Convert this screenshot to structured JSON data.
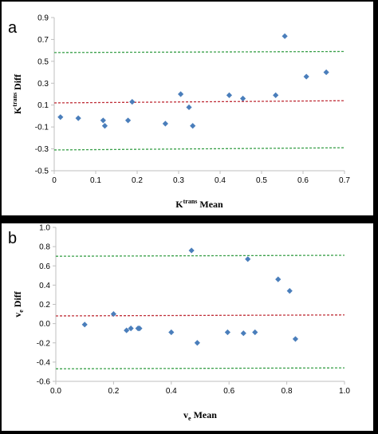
{
  "colors": {
    "points": "#4a7ebb",
    "mean_line": "#c0303a",
    "limit_lines": "#3aa04a",
    "axis": "#bfbfbf",
    "background": "#000000"
  },
  "chart_data": [
    {
      "type": "scatter",
      "panel_label": "a",
      "xlabel_main": "K",
      "xlabel_sup": "trans",
      "xlabel_tail": " Mean",
      "ylabel_main": "K",
      "ylabel_sup": "trans",
      "ylabel_tail": " Diff",
      "xlim": [
        0,
        0.7
      ],
      "ylim": [
        -0.5,
        0.9
      ],
      "x_ticks": [
        "0",
        "0.1",
        "0.2",
        "0.3",
        "0.4",
        "0.5",
        "0.6",
        "0.7"
      ],
      "y_ticks": [
        "0.9",
        "0.7",
        "0.5",
        "0.3",
        "0.1",
        "-0.1",
        "-0.3",
        "-0.5"
      ],
      "grid": false,
      "points": [
        {
          "x": 0.015,
          "y": -0.01
        },
        {
          "x": 0.058,
          "y": -0.02
        },
        {
          "x": 0.118,
          "y": -0.04
        },
        {
          "x": 0.122,
          "y": -0.09
        },
        {
          "x": 0.178,
          "y": -0.04
        },
        {
          "x": 0.188,
          "y": 0.13
        },
        {
          "x": 0.268,
          "y": -0.07
        },
        {
          "x": 0.305,
          "y": 0.2
        },
        {
          "x": 0.325,
          "y": 0.08
        },
        {
          "x": 0.334,
          "y": -0.09
        },
        {
          "x": 0.422,
          "y": 0.19
        },
        {
          "x": 0.455,
          "y": 0.16
        },
        {
          "x": 0.534,
          "y": 0.19
        },
        {
          "x": 0.556,
          "y": 0.73
        },
        {
          "x": 0.608,
          "y": 0.36
        },
        {
          "x": 0.656,
          "y": 0.4
        }
      ],
      "mean_line": {
        "y_start": 0.12,
        "y_end": 0.14
      },
      "upper_limit": {
        "y_start": 0.58,
        "y_end": 0.59
      },
      "lower_limit": {
        "y_start": -0.31,
        "y_end": -0.29
      }
    },
    {
      "type": "scatter",
      "panel_label": "b",
      "xlabel_main": "v",
      "xlabel_sub": "e",
      "xlabel_tail": " Mean",
      "ylabel_main": "v",
      "ylabel_sub": "e",
      "ylabel_tail": " Diff",
      "xlim": [
        0,
        1.0
      ],
      "ylim": [
        -0.6,
        1.0
      ],
      "x_ticks": [
        "0.0",
        "0.2",
        "0.4",
        "0.6",
        "0.8",
        "1.0"
      ],
      "y_ticks": [
        "1.0",
        "0.8",
        "0.6",
        "0.4",
        "0.2",
        "0.0",
        "-0.2",
        "-0.4",
        "-0.6"
      ],
      "grid": false,
      "points": [
        {
          "x": 0.1,
          "y": -0.01
        },
        {
          "x": 0.2,
          "y": 0.1
        },
        {
          "x": 0.245,
          "y": -0.07
        },
        {
          "x": 0.26,
          "y": -0.05
        },
        {
          "x": 0.285,
          "y": -0.05
        },
        {
          "x": 0.29,
          "y": -0.05
        },
        {
          "x": 0.4,
          "y": -0.09
        },
        {
          "x": 0.47,
          "y": 0.76
        },
        {
          "x": 0.49,
          "y": -0.2
        },
        {
          "x": 0.595,
          "y": -0.09
        },
        {
          "x": 0.65,
          "y": -0.1
        },
        {
          "x": 0.665,
          "y": 0.67
        },
        {
          "x": 0.69,
          "y": -0.09
        },
        {
          "x": 0.77,
          "y": 0.46
        },
        {
          "x": 0.81,
          "y": 0.34
        },
        {
          "x": 0.83,
          "y": -0.16
        }
      ],
      "mean_line": {
        "y_start": 0.08,
        "y_end": 0.09
      },
      "upper_limit": {
        "y_start": 0.7,
        "y_end": 0.71
      },
      "lower_limit": {
        "y_start": -0.47,
        "y_end": -0.46
      }
    }
  ]
}
